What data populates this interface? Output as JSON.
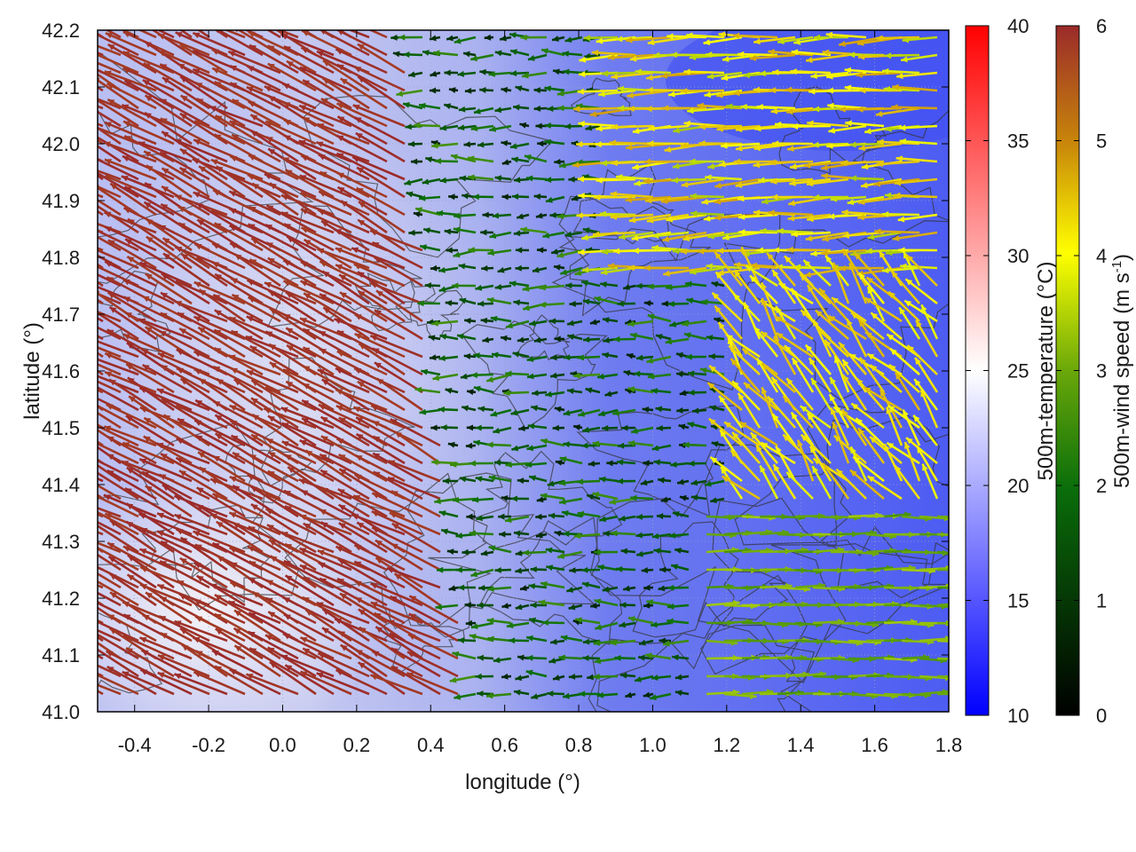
{
  "chart_data": {
    "type": "heatmap",
    "description_overlays": [
      "wind-vectors",
      "contours"
    ],
    "xlabel": "longitude (°)",
    "ylabel": "latitude (°)",
    "xlim": [
      -0.5,
      1.8
    ],
    "ylim": [
      41.0,
      42.2
    ],
    "xticks": [
      "-0.4",
      "-0.2",
      "0.0",
      "0.2",
      "0.4",
      "0.6",
      "0.8",
      "1.0",
      "1.2",
      "1.4",
      "1.6",
      "1.8"
    ],
    "yticks": [
      "41.0",
      "41.1",
      "41.2",
      "41.3",
      "41.4",
      "41.5",
      "41.6",
      "41.7",
      "41.8",
      "41.9",
      "42.0",
      "42.1",
      "42.2"
    ],
    "grid": true,
    "temperature_colorbar": {
      "label": "500m-temperature (°C)",
      "range": [
        10,
        40
      ],
      "ticks": [
        "10",
        "15",
        "20",
        "25",
        "30",
        "35",
        "40"
      ],
      "colors": [
        "#0000ff",
        "#ffffff",
        "#ff0000"
      ]
    },
    "wind_colorbar": {
      "label_main": "500m-wind speed (m s",
      "label_sup": "-1",
      "label_end": ")",
      "range": [
        0,
        6
      ],
      "ticks": [
        "0",
        "1",
        "2",
        "3",
        "4",
        "5",
        "6"
      ],
      "colors": [
        "#000000",
        "#0a6e0a",
        "#ffff00",
        "#c8860a",
        "#9b2a2a"
      ]
    },
    "temperature_field_approx": {
      "west_warm_region": {
        "lon_max": 0.5,
        "temp_c": 22
      },
      "east_cool_region": {
        "lon_min": 0.8,
        "temp_c": 14
      },
      "southwest_warmest": {
        "lon": -0.2,
        "lat": 41.2,
        "temp_c": 25
      }
    },
    "wind_regimes": [
      {
        "region": "west of 0.5°",
        "speed_ms": 5.8,
        "direction": "toward north-west"
      },
      {
        "region": "central 0.6°-1.1°",
        "speed_ms": 1.2,
        "direction": "toward west"
      },
      {
        "region": "north-east",
        "speed_ms": 3.8,
        "direction": "toward west"
      },
      {
        "region": "south-east",
        "speed_ms": 2.8,
        "direction": "toward east"
      }
    ]
  }
}
